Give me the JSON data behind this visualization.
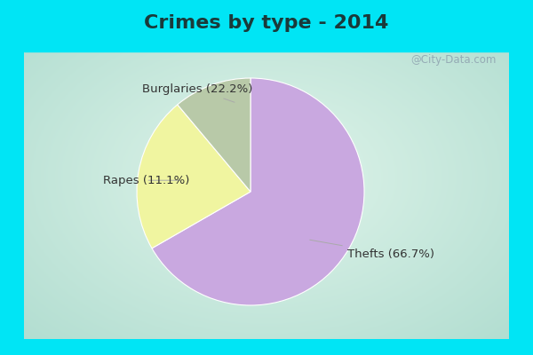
{
  "title": "Crimes by type - 2014",
  "slices": [
    {
      "label": "Thefts (66.7%)",
      "value": 66.7,
      "color": "#c9a8e0"
    },
    {
      "label": "Burglaries (22.2%)",
      "value": 22.2,
      "color": "#f0f5a0"
    },
    {
      "label": "Rapes (11.1%)",
      "value": 11.1,
      "color": "#b8c9a8"
    }
  ],
  "background_top": "#00e5f5",
  "background_main_center": "#d8f0e8",
  "background_main_edge": "#b0ddd0",
  "title_color": "#1a3a3a",
  "title_fontsize": 16,
  "label_fontsize": 9.5,
  "watermark": "@City-Data.com",
  "startangle": 90,
  "border_cyan": "#00e5f5",
  "border_width": 8
}
